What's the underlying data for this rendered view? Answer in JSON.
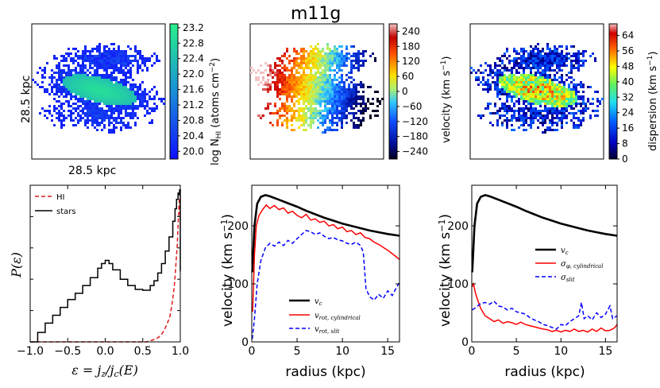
{
  "figure_title": "m11g",
  "colors": {
    "black": "#000000",
    "red": "#ff0000",
    "blue": "#0000ff",
    "hi_line": "#e0191b"
  },
  "chart_data": [
    {
      "id": "map_hi",
      "type": "heatmap",
      "title": "",
      "xlabel": "28.5 kpc",
      "ylabel": "28.5 kpc",
      "colorbar": {
        "label": "log N_HI (atoms cm^-2)",
        "ticks": [
          "23.2",
          "22.8",
          "22.4",
          "22.0",
          "21.6",
          "21.2",
          "20.8",
          "20.4",
          "20.0"
        ],
        "range": [
          19.8,
          23.3
        ],
        "colormap": "blue-to-green"
      }
    },
    {
      "id": "map_velocity",
      "type": "heatmap",
      "title": "",
      "colorbar": {
        "label": "velocity (km s^-1)",
        "ticks": [
          "240",
          "180",
          "120",
          "60",
          "0",
          "−60",
          "−120",
          "−180",
          "−240"
        ],
        "range": [
          -270,
          270
        ],
        "colormap": "diverging"
      }
    },
    {
      "id": "map_dispersion",
      "type": "heatmap",
      "title": "",
      "colorbar": {
        "label": "dispersion (km s^-1)",
        "ticks": [
          "64",
          "56",
          "48",
          "40",
          "32",
          "24",
          "16",
          "8",
          "0"
        ],
        "range": [
          0,
          70
        ],
        "colormap": "jet"
      }
    },
    {
      "id": "circularity",
      "type": "line",
      "xlabel": "ε = j_z / j_c(E)",
      "ylabel": "P(ε)",
      "xlim": [
        -1.0,
        1.0
      ],
      "ylim": [
        0,
        1.0
      ],
      "xticks": [
        "−1.0",
        "−0.5",
        "0.0",
        "0.5",
        "1.0"
      ],
      "legend": {
        "placement": "top-left",
        "entries": [
          "HI",
          "stars"
        ]
      },
      "series": [
        {
          "name": "HI",
          "style": "dashed",
          "color": "#e0191b",
          "x": [
            -1.0,
            0.55,
            0.62,
            0.68,
            0.74,
            0.78,
            0.82,
            0.86,
            0.89,
            0.92,
            0.94,
            0.96,
            0.97,
            0.98,
            0.99,
            1.0
          ],
          "y": [
            0.0,
            0.0,
            0.01,
            0.02,
            0.04,
            0.07,
            0.11,
            0.16,
            0.24,
            0.35,
            0.48,
            0.62,
            0.74,
            0.85,
            0.92,
            0.78
          ]
        },
        {
          "name": "stars",
          "style": "step",
          "color": "#000000",
          "x": [
            -1.0,
            -0.9,
            -0.8,
            -0.7,
            -0.6,
            -0.5,
            -0.4,
            -0.3,
            -0.2,
            -0.1,
            -0.05,
            0.0,
            0.05,
            0.1,
            0.2,
            0.3,
            0.4,
            0.5,
            0.6,
            0.65,
            0.7,
            0.75,
            0.8,
            0.85,
            0.9,
            0.93,
            0.95,
            0.97,
            0.98,
            0.99,
            1.0
          ],
          "y": [
            0.0,
            0.06,
            0.12,
            0.17,
            0.22,
            0.27,
            0.31,
            0.36,
            0.41,
            0.47,
            0.5,
            0.52,
            0.5,
            0.46,
            0.4,
            0.36,
            0.335,
            0.33,
            0.36,
            0.39,
            0.44,
            0.5,
            0.58,
            0.67,
            0.77,
            0.85,
            0.91,
            0.95,
            0.94,
            0.97,
            0.45
          ]
        }
      ]
    },
    {
      "id": "rotation_hi",
      "type": "line",
      "xlabel": "radius (kpc)",
      "ylabel": "velocity (km s^-1)",
      "xlim": [
        0,
        16.3
      ],
      "ylim": [
        0,
        270
      ],
      "xticks": [
        "0",
        "5",
        "10",
        "15"
      ],
      "yticks": [
        "0",
        "100",
        "200"
      ],
      "legend": {
        "placement": "bottom-center",
        "entries": [
          "v_c",
          "v_rot, cylindrical",
          "v_rot, slit"
        ]
      },
      "series": [
        {
          "name": "v_c",
          "style": "solid-thick",
          "color": "#000000",
          "x": [
            0.05,
            0.3,
            0.6,
            1.0,
            1.5,
            2.0,
            3,
            4,
            5,
            6,
            7,
            8,
            9,
            10,
            11,
            12,
            13,
            14,
            15,
            16.3
          ],
          "y": [
            120,
            200,
            238,
            250,
            253,
            251,
            245,
            239,
            233,
            226,
            220,
            214,
            209,
            204,
            200,
            196,
            192,
            189,
            186,
            183
          ]
        },
        {
          "name": "v_rot, cylindrical",
          "style": "solid",
          "color": "#ff0000",
          "x": [
            0.1,
            0.3,
            0.5,
            0.8,
            1.2,
            1.6,
            2,
            2.5,
            3,
            3.5,
            4,
            4.5,
            5,
            5.5,
            6,
            6.5,
            7,
            7.5,
            8,
            8.5,
            9,
            9.5,
            10,
            10.5,
            11,
            11.5,
            12,
            12.5,
            13,
            13.5,
            14,
            14.5,
            15,
            15.5,
            16,
            16.3
          ],
          "y": [
            52,
            150,
            200,
            218,
            228,
            236,
            230,
            235,
            228,
            231,
            222,
            225,
            218,
            214,
            220,
            210,
            212,
            206,
            208,
            200,
            202,
            195,
            198,
            190,
            192,
            185,
            188,
            180,
            178,
            172,
            168,
            163,
            158,
            152,
            146,
            142
          ]
        },
        {
          "name": "v_rot, slit",
          "style": "dashed",
          "color": "#0000ff",
          "x": [
            0.05,
            0.3,
            0.6,
            1.0,
            1.5,
            2,
            2.5,
            3,
            3.5,
            4,
            4.5,
            5,
            5.5,
            6,
            6.5,
            7,
            7.5,
            8,
            8.5,
            9,
            9.5,
            10,
            10.5,
            11,
            11.5,
            12,
            12.3,
            12.6,
            13,
            13.5,
            14,
            14.5,
            15,
            15.5,
            16,
            16.3
          ],
          "y": [
            5,
            40,
            100,
            140,
            162,
            170,
            165,
            172,
            166,
            175,
            170,
            178,
            185,
            192,
            190,
            185,
            188,
            182,
            178,
            180,
            176,
            174,
            170,
            168,
            172,
            166,
            155,
            92,
            78,
            72,
            82,
            75,
            88,
            80,
            95,
            102
          ]
        }
      ]
    },
    {
      "id": "rotation_stars",
      "type": "line",
      "xlabel": "radius (kpc)",
      "ylabel": "velocity (km s^-1)",
      "xlim": [
        0,
        16.3
      ],
      "ylim": [
        0,
        270
      ],
      "xticks": [
        "0",
        "5",
        "10",
        "15"
      ],
      "yticks": [
        "0",
        "100",
        "200"
      ],
      "legend": {
        "placement": "center-right",
        "entries": [
          "v_c",
          "σ_φ, cylindrical",
          "σ_slit"
        ]
      },
      "series": [
        {
          "name": "v_c",
          "style": "solid-thick",
          "color": "#000000",
          "x": [
            0.05,
            0.3,
            0.6,
            1.0,
            1.5,
            2.0,
            3,
            4,
            5,
            6,
            7,
            8,
            9,
            10,
            11,
            12,
            13,
            14,
            15,
            16.3
          ],
          "y": [
            120,
            200,
            238,
            250,
            253,
            251,
            245,
            239,
            233,
            226,
            220,
            214,
            209,
            204,
            200,
            196,
            192,
            189,
            186,
            183
          ]
        },
        {
          "name": "σ_φ, cylindrical",
          "style": "solid",
          "color": "#ff0000",
          "x": [
            0.05,
            0.2,
            0.4,
            0.7,
            1,
            1.5,
            2,
            2.5,
            3,
            3.5,
            4,
            4.5,
            5,
            5.5,
            6,
            6.5,
            7,
            7.5,
            8,
            8.5,
            9,
            9.5,
            10,
            10.5,
            11,
            11.5,
            12,
            12.5,
            13,
            13.5,
            14,
            14.5,
            15,
            15.5,
            16,
            16.3
          ],
          "y": [
            95,
            100,
            85,
            70,
            58,
            45,
            40,
            35,
            38,
            32,
            35,
            33,
            30,
            34,
            30,
            28,
            26,
            24,
            22,
            21,
            18,
            20,
            17,
            20,
            18,
            22,
            18,
            20,
            17,
            22,
            18,
            24,
            19,
            20,
            24,
            30
          ]
        },
        {
          "name": "σ_slit",
          "style": "dashed",
          "color": "#0000ff",
          "x": [
            0.05,
            0.5,
            1,
            1.5,
            2,
            2.5,
            3,
            3.5,
            4,
            4.5,
            5,
            5.5,
            6,
            6.5,
            7,
            7.5,
            8,
            8.5,
            9,
            9.5,
            10,
            10.5,
            11,
            11.5,
            12,
            12.3,
            12.6,
            13,
            13.5,
            14,
            14.5,
            15,
            15.5,
            15.8,
            16.3
          ],
          "y": [
            55,
            60,
            66,
            68,
            65,
            70,
            62,
            60,
            55,
            58,
            52,
            50,
            48,
            42,
            38,
            35,
            30,
            28,
            25,
            22,
            30,
            28,
            35,
            40,
            45,
            68,
            40,
            45,
            38,
            50,
            42,
            48,
            62,
            40,
            45
          ]
        }
      ]
    }
  ]
}
